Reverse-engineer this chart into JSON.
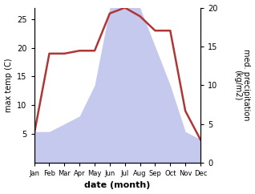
{
  "months": [
    "Jan",
    "Feb",
    "Mar",
    "Apr",
    "May",
    "Jun",
    "Jul",
    "Aug",
    "Sep",
    "Oct",
    "Nov",
    "Dec"
  ],
  "x": [
    1,
    2,
    3,
    4,
    5,
    6,
    7,
    8,
    9,
    10,
    11,
    12
  ],
  "temp": [
    5,
    19,
    19,
    19.5,
    19.5,
    26,
    27,
    25.5,
    23,
    23,
    9,
    4
  ],
  "precip": [
    4,
    4,
    5,
    6,
    10,
    20,
    25,
    20,
    15,
    10,
    4,
    3
  ],
  "temp_color": "#b03535",
  "precip_fill_color": "#b0b8e8",
  "precip_alpha": 0.75,
  "temp_linewidth": 1.8,
  "ylabel_left": "max temp (C)",
  "ylabel_right": "med. precipitation\n(kg/m2)",
  "xlabel": "date (month)",
  "ylim": [
    0,
    27
  ],
  "yticks_left": [
    5,
    10,
    15,
    20,
    25
  ],
  "yticks_right_vals": [
    0,
    5,
    10,
    15,
    20
  ],
  "yticks_right_labels": [
    "0",
    "5",
    "10",
    "15",
    "20"
  ],
  "precip_scale": 1.35,
  "background_color": "#ffffff"
}
